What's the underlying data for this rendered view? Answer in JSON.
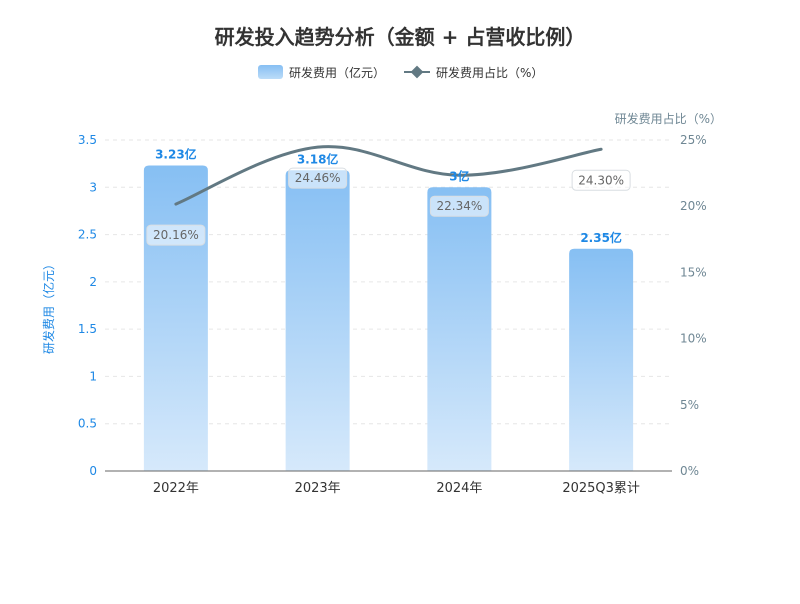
{
  "chart_data": {
    "type": "bar",
    "title": "研发投入趋势分析（金额 + 占营收比例）",
    "categories": [
      "2022年",
      "2023年",
      "2024年",
      "2025Q3累计"
    ],
    "series": [
      {
        "name": "研发费用（亿元）",
        "type": "bar",
        "axis": "left",
        "values": [
          3.23,
          3.18,
          3,
          2.35
        ],
        "labels": [
          "3.23亿",
          "3.18亿",
          "3亿",
          "2.35亿"
        ],
        "color_top": "#86bff3",
        "color_bottom": "#d6e9fb"
      },
      {
        "name": "研发费用占比（%）",
        "type": "line",
        "axis": "right",
        "values": [
          20.16,
          24.46,
          22.34,
          24.3
        ],
        "labels": [
          "20.16%",
          "24.46%",
          "22.34%",
          "24.30%"
        ],
        "color": "#627983"
      }
    ],
    "ylabel_left": "研发费用（亿元）",
    "ylabel_right": "研发费用占比（%）",
    "ylim_left": [
      0,
      3.5
    ],
    "yticks_left": [
      "0",
      "0.5",
      "1",
      "1.5",
      "2",
      "2.5",
      "3",
      "3.5"
    ],
    "ylim_right": [
      0,
      25
    ],
    "yticks_right": [
      "0%",
      "5%",
      "10%",
      "15%",
      "20%",
      "25%"
    ],
    "grid": true,
    "legend_position": "top-center",
    "colors": {
      "left_axis": "#1e88e5",
      "right_axis": "#6f8794",
      "bar_label": "#1e88e5",
      "title": "#333333"
    }
  }
}
